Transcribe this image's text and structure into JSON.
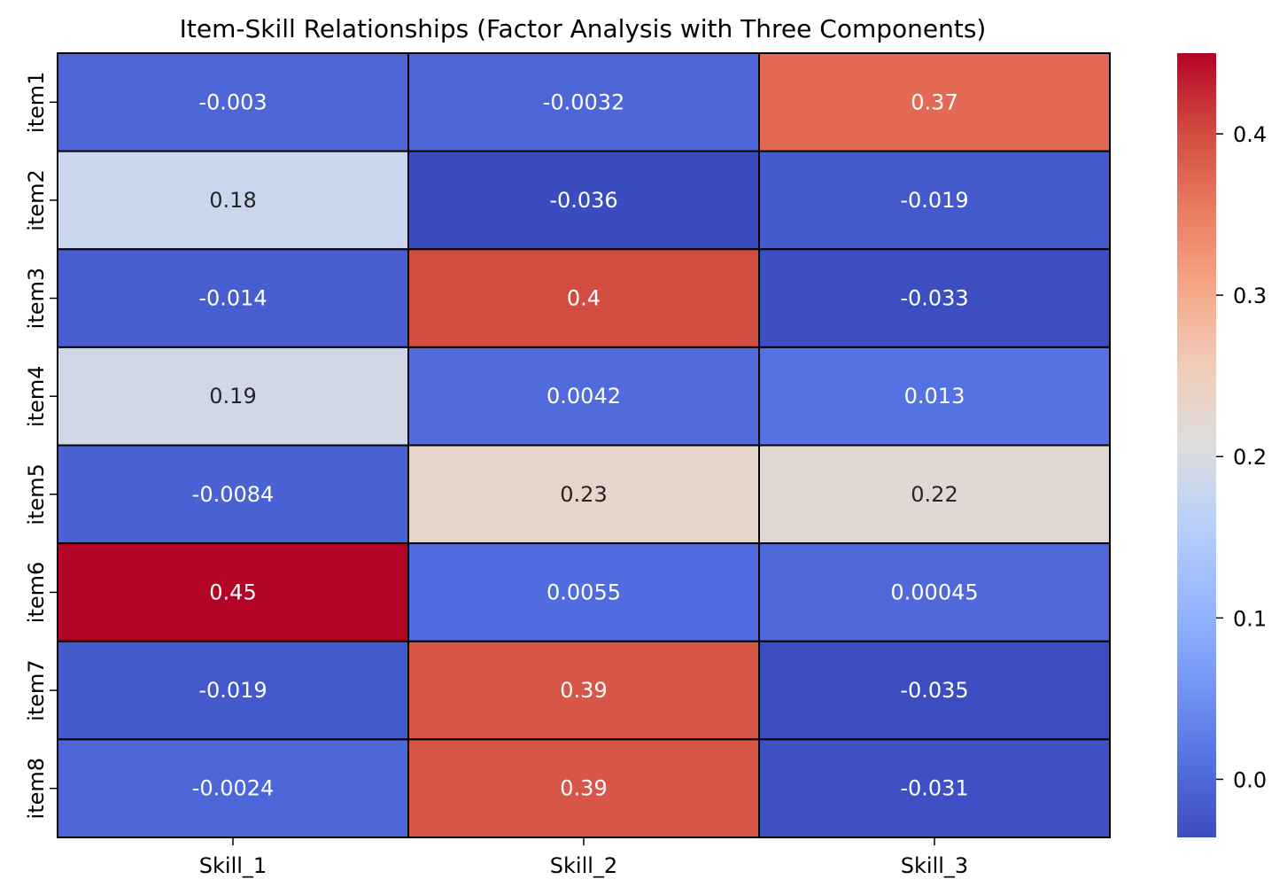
{
  "chart_data": {
    "type": "heatmap",
    "title": "Item-Skill Relationships (Factor Analysis with Three Components)",
    "xlabel": "",
    "ylabel": "",
    "columns": [
      "Skill_1",
      "Skill_2",
      "Skill_3"
    ],
    "rows": [
      "item1",
      "item2",
      "item3",
      "item4",
      "item5",
      "item6",
      "item7",
      "item8"
    ],
    "values": [
      [
        -0.003,
        -0.0032,
        0.37
      ],
      [
        0.18,
        -0.036,
        -0.019
      ],
      [
        -0.014,
        0.4,
        -0.033
      ],
      [
        0.19,
        0.0042,
        0.013
      ],
      [
        -0.0084,
        0.23,
        0.22
      ],
      [
        0.45,
        0.0055,
        0.00045
      ],
      [
        -0.019,
        0.39,
        -0.035
      ],
      [
        -0.0024,
        0.39,
        -0.031
      ]
    ],
    "labels": [
      [
        "-0.003",
        "-0.0032",
        "0.37"
      ],
      [
        "0.18",
        "-0.036",
        "-0.019"
      ],
      [
        "-0.014",
        "0.4",
        "-0.033"
      ],
      [
        "0.19",
        "0.0042",
        "0.013"
      ],
      [
        "-0.0084",
        "0.23",
        "0.22"
      ],
      [
        "0.45",
        "0.0055",
        "0.00045"
      ],
      [
        "-0.019",
        "0.39",
        "-0.035"
      ],
      [
        "-0.0024",
        "0.39",
        "-0.031"
      ]
    ],
    "colormap": "coolwarm",
    "color_range": [
      -0.036,
      0.45
    ],
    "colorbar_ticks": [
      0.0,
      0.1,
      0.2,
      0.3,
      0.4
    ],
    "colorbar_tick_labels": [
      "0.0",
      "0.1",
      "0.2",
      "0.3",
      "0.4"
    ],
    "cell_border_color": "#000000",
    "annotation_colors": {
      "on_light": "#262626",
      "on_dark": "#ffffff"
    }
  }
}
